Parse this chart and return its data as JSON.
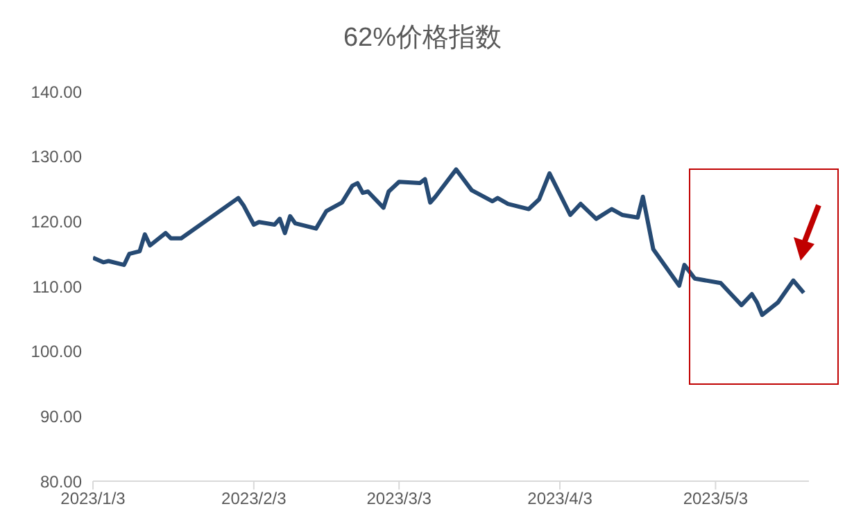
{
  "chart_data": {
    "type": "line",
    "title": "62%价格指数",
    "x": [
      "2023-01-03",
      "2023-01-05",
      "2023-01-06",
      "2023-01-09",
      "2023-01-10",
      "2023-01-12",
      "2023-01-13",
      "2023-01-14",
      "2023-01-17",
      "2023-01-18",
      "2023-01-20",
      "2023-01-31",
      "2023-02-01",
      "2023-02-03",
      "2023-02-04",
      "2023-02-07",
      "2023-02-08",
      "2023-02-09",
      "2023-02-10",
      "2023-02-11",
      "2023-02-15",
      "2023-02-17",
      "2023-02-20",
      "2023-02-22",
      "2023-02-23",
      "2023-02-24",
      "2023-02-25",
      "2023-02-28",
      "2023-03-01",
      "2023-03-03",
      "2023-03-07",
      "2023-03-08",
      "2023-03-09",
      "2023-03-10",
      "2023-03-14",
      "2023-03-17",
      "2023-03-21",
      "2023-03-22",
      "2023-03-24",
      "2023-03-28",
      "2023-03-30",
      "2023-04-01",
      "2023-04-05",
      "2023-04-07",
      "2023-04-10",
      "2023-04-13",
      "2023-04-15",
      "2023-04-18",
      "2023-04-19",
      "2023-04-21",
      "2023-04-26",
      "2023-04-27",
      "2023-04-29",
      "2023-05-04",
      "2023-05-06",
      "2023-05-08",
      "2023-05-10",
      "2023-05-11",
      "2023-05-12",
      "2023-05-15",
      "2023-05-18",
      "2023-05-20"
    ],
    "series": [
      {
        "color": "#264a73",
        "values": [
          114.4,
          113.7,
          113.9,
          113.3,
          115.0,
          115.4,
          118.0,
          116.3,
          118.2,
          117.4,
          117.4,
          123.6,
          122.5,
          119.5,
          119.9,
          119.5,
          120.4,
          118.2,
          120.8,
          119.7,
          118.9,
          121.6,
          122.9,
          125.5,
          125.9,
          124.4,
          124.6,
          122.1,
          124.6,
          126.1,
          125.9,
          126.5,
          122.9,
          123.8,
          128.0,
          124.8,
          123.1,
          123.6,
          122.7,
          121.9,
          123.4,
          127.4,
          121.0,
          122.7,
          120.4,
          121.9,
          121.0,
          120.6,
          123.8,
          115.7,
          110.1,
          113.3,
          111.2,
          110.5,
          108.8,
          107.1,
          108.8,
          107.5,
          105.6,
          107.5,
          110.9,
          109.0
        ]
      }
    ],
    "xlim": [
      "2023-01-03",
      "2023-05-21"
    ],
    "xticks": [
      {
        "value": "2023-01-03",
        "label": "2023/1/3"
      },
      {
        "value": "2023-02-03",
        "label": "2023/2/3"
      },
      {
        "value": "2023-03-03",
        "label": "2023/3/3"
      },
      {
        "value": "2023-04-03",
        "label": "2023/4/3"
      },
      {
        "value": "2023-05-03",
        "label": "2023/5/3"
      }
    ],
    "ylim": [
      80,
      140
    ],
    "yticks": [
      {
        "value": 80,
        "label": "80.00"
      },
      {
        "value": 90,
        "label": "90.00"
      },
      {
        "value": 100,
        "label": "100.00"
      },
      {
        "value": 110,
        "label": "110.00"
      },
      {
        "value": 120,
        "label": "120.00"
      },
      {
        "value": 130,
        "label": "130.00"
      },
      {
        "value": 140,
        "label": "140.00"
      }
    ],
    "grid": false,
    "legend": false,
    "marker": "none",
    "line_style": "solid"
  }
}
